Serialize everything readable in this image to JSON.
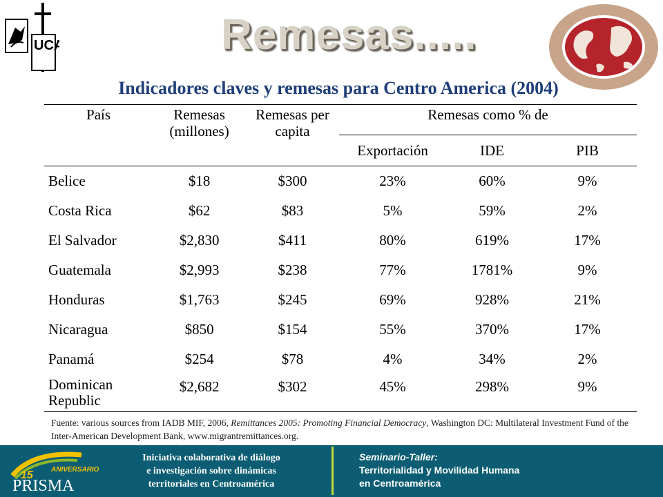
{
  "header": {
    "title": "Remesas.....",
    "subtitle": "Indicadores claves y remesas para Centro America (2004)",
    "logo_left_text": "UCA"
  },
  "table": {
    "col_country": "País",
    "col_remesas": "Remesas (millones)",
    "col_percapita": "Remesas per capita",
    "col_group": "Remesas como % de",
    "col_export": "Exportación",
    "col_ide": "IDE",
    "col_pib": "PIB",
    "rows": [
      {
        "country": "Belice",
        "remesas": "$18",
        "percapita": "$300",
        "export": "23%",
        "ide": "60%",
        "pib": "9%"
      },
      {
        "country": "Costa Rica",
        "remesas": "$62",
        "percapita": "$83",
        "export": "5%",
        "ide": "59%",
        "pib": "2%"
      },
      {
        "country": "El Salvador",
        "remesas": "$2,830",
        "percapita": "$411",
        "export": "80%",
        "ide": "619%",
        "pib": "17%"
      },
      {
        "country": "Guatemala",
        "remesas": "$2,993",
        "percapita": "$238",
        "export": "77%",
        "ide": "1781%",
        "pib": "9%"
      },
      {
        "country": "Honduras",
        "remesas": "$1,763",
        "percapita": "$245",
        "export": "69%",
        "ide": "928%",
        "pib": "21%"
      },
      {
        "country": "Nicaragua",
        "remesas": "$850",
        "percapita": "$154",
        "export": "55%",
        "ide": "370%",
        "pib": "17%"
      },
      {
        "country": "Panamá",
        "remesas": "$254",
        "percapita": "$78",
        "export": "4%",
        "ide": "34%",
        "pib": "2%"
      },
      {
        "country": "Dominican Republic",
        "remesas": "$2,682",
        "percapita": "$302",
        "export": "45%",
        "ide": "298%",
        "pib": "9%"
      }
    ]
  },
  "source": {
    "prefix": "Fuente: various sources from IADB MIF, 2006, ",
    "italic": "Remittances 2005: Promoting Financial Democracy",
    "suffix": ", Washington DC: Multilateral Investment Fund of the Inter-American Development Bank, www.migrantremittances.org."
  },
  "footer": {
    "prisma_brand": "PRISMA",
    "prisma_anniv_number": "15",
    "prisma_anniv_word": "ANIVERSARIO",
    "left_line1": "Iniciativa colaborativa de diálogo",
    "left_line2": "e investigación sobre dinámicas",
    "left_line3": "territoriales en Centroamérica",
    "right_kicker": "Seminario-Taller:",
    "right_line1": "Territorialidad y Movilidad Humana",
    "right_line2": "en Centroamérica"
  },
  "colors": {
    "footer_bg": "#0c5d73",
    "subtitle": "#1f3f7a",
    "divider": "#c7d83a",
    "network_red": "#b5242a"
  }
}
